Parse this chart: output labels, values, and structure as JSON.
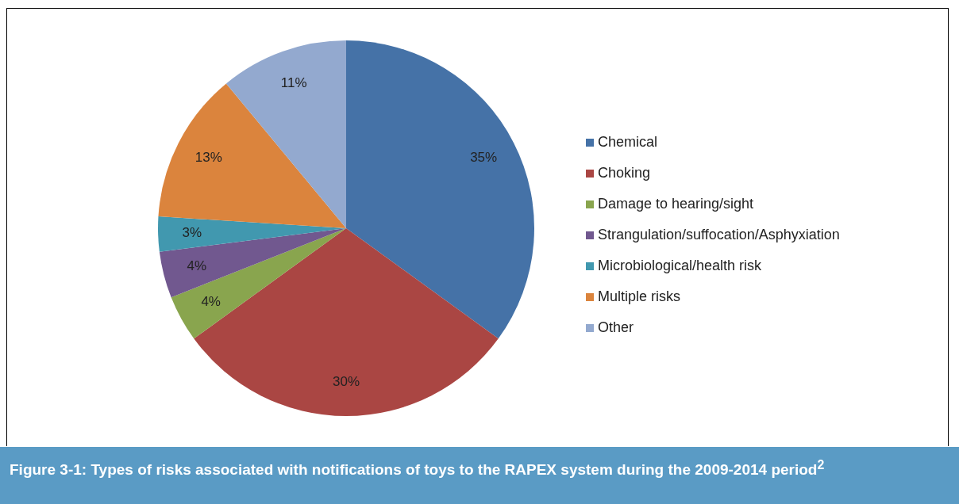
{
  "chart_data": {
    "type": "pie",
    "title": "Figure 3-1:  Types of risks associated with notifications of toys to the RAPEX system during the 2009-2014 period$^{2}$",
    "categories": [
      "Chemical",
      "Choking",
      "Damage to hearing/sight",
      "Strangulation/suffocation/Asphyxiation",
      "Microbiological/health risk",
      "Multiple risks",
      "Other"
    ],
    "values": [
      35,
      30,
      4,
      4,
      3,
      13,
      11
    ],
    "value_labels": [
      "35%",
      "30%",
      "4%",
      "4%",
      "3%",
      "13%",
      "11%"
    ],
    "colors": [
      "#4572a7",
      "#aa4643",
      "#89a54e",
      "#71588f",
      "#4198af",
      "#db843d",
      "#93a9cf"
    ],
    "legend": "right"
  }
}
